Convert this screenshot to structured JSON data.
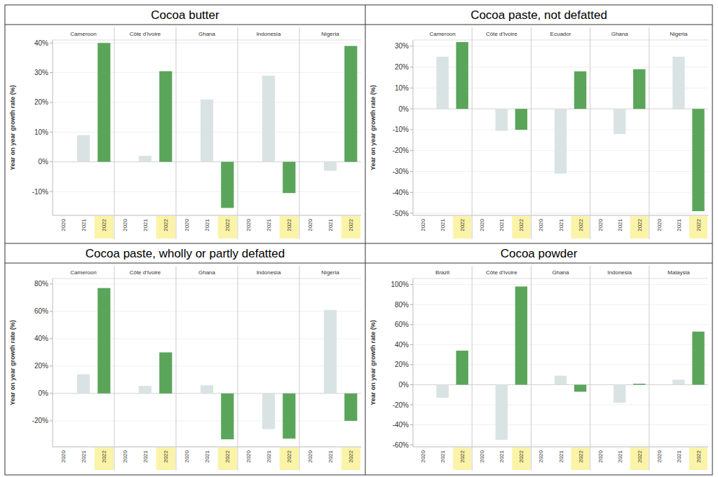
{
  "chart_data": [
    {
      "type": "bar",
      "title": "Cocoa butter",
      "y_label": "Year on year growth rate (%)",
      "categories": [
        "2020",
        "2021",
        "2022"
      ],
      "colors": [
        "#d9e3e3",
        "#d9e3e3",
        "#5aa55a"
      ],
      "ylim": [
        -18,
        41
      ],
      "yticks": [
        {
          "value": -10,
          "label": "-10%"
        },
        {
          "value": 0,
          "label": "0%"
        },
        {
          "value": 10,
          "label": "10%"
        },
        {
          "value": 20,
          "label": "20%"
        },
        {
          "value": 30,
          "label": "30%"
        },
        {
          "value": 40,
          "label": "40%"
        }
      ],
      "grid": true,
      "series": [
        {
          "name": "Cameroon",
          "values": [
            null,
            9,
            40
          ]
        },
        {
          "name": "Côte d'Ivoire",
          "values": [
            null,
            2,
            30.5
          ]
        },
        {
          "name": "Ghana",
          "values": [
            null,
            21,
            -15.5
          ]
        },
        {
          "name": "Indonesia",
          "values": [
            null,
            29,
            -10.5
          ]
        },
        {
          "name": "Nigeria",
          "values": [
            null,
            -3,
            39
          ]
        }
      ]
    },
    {
      "type": "bar",
      "title": "Cocoa paste, not defatted",
      "y_label": "Year on year growth rate (%)",
      "categories": [
        "2020",
        "2021",
        "2022"
      ],
      "colors": [
        "#d9e3e3",
        "#d9e3e3",
        "#5aa55a"
      ],
      "ylim": [
        -51,
        33
      ],
      "yticks": [
        {
          "value": -50,
          "label": "-50%"
        },
        {
          "value": -40,
          "label": "-40%"
        },
        {
          "value": -30,
          "label": "-30%"
        },
        {
          "value": -20,
          "label": "-20%"
        },
        {
          "value": -10,
          "label": "-10%"
        },
        {
          "value": 0,
          "label": "0%"
        },
        {
          "value": 10,
          "label": "10%"
        },
        {
          "value": 20,
          "label": "20%"
        },
        {
          "value": 30,
          "label": "30%"
        }
      ],
      "grid": true,
      "series": [
        {
          "name": "Cameroon",
          "values": [
            null,
            25,
            32
          ]
        },
        {
          "name": "Côte d'Ivoire",
          "values": [
            null,
            -10.5,
            -10
          ]
        },
        {
          "name": "Ecuador",
          "values": [
            null,
            -31,
            18
          ]
        },
        {
          "name": "Ghana",
          "values": [
            null,
            -12,
            19
          ]
        },
        {
          "name": "Nigeria",
          "values": [
            null,
            25,
            -49
          ]
        }
      ]
    },
    {
      "type": "bar",
      "title": "Cocoa paste, wholly or partly defatted",
      "y_label": "Year on year growth rate (%)",
      "categories": [
        "2020",
        "2021",
        "2022"
      ],
      "colors": [
        "#d9e3e3",
        "#d9e3e3",
        "#5aa55a"
      ],
      "ylim": [
        -39,
        84
      ],
      "yticks": [
        {
          "value": -20,
          "label": "-20%"
        },
        {
          "value": 0,
          "label": "0%"
        },
        {
          "value": 20,
          "label": "20%"
        },
        {
          "value": 40,
          "label": "40%"
        },
        {
          "value": 60,
          "label": "60%"
        },
        {
          "value": 80,
          "label": "80%"
        }
      ],
      "grid": true,
      "series": [
        {
          "name": "Cameroon",
          "values": [
            null,
            14,
            77
          ]
        },
        {
          "name": "Côte d'Ivoire",
          "values": [
            null,
            5.5,
            30
          ]
        },
        {
          "name": "Ghana",
          "values": [
            null,
            6,
            -33.5
          ]
        },
        {
          "name": "Indonesia",
          "values": [
            null,
            -26,
            -33
          ]
        },
        {
          "name": "Nigeria",
          "values": [
            null,
            61,
            -20
          ]
        }
      ]
    },
    {
      "type": "bar",
      "title": "Cocoa powder",
      "y_label": "Year on year growth rate (%)",
      "categories": [
        "2020",
        "2021",
        "2022"
      ],
      "colors": [
        "#d9e3e3",
        "#d9e3e3",
        "#5aa55a"
      ],
      "ylim": [
        -62,
        106
      ],
      "yticks": [
        {
          "value": -60,
          "label": "-60%"
        },
        {
          "value": -40,
          "label": "-40%"
        },
        {
          "value": -20,
          "label": "-20%"
        },
        {
          "value": 0,
          "label": "0%"
        },
        {
          "value": 20,
          "label": "20%"
        },
        {
          "value": 40,
          "label": "40%"
        },
        {
          "value": 60,
          "label": "60%"
        },
        {
          "value": 80,
          "label": "80%"
        },
        {
          "value": 100,
          "label": "100%"
        }
      ],
      "grid": true,
      "series": [
        {
          "name": "Brazil",
          "values": [
            null,
            -13,
            34
          ]
        },
        {
          "name": "Côte d'Ivoire",
          "values": [
            null,
            -55,
            98
          ]
        },
        {
          "name": "Ghana",
          "values": [
            null,
            9,
            -7
          ]
        },
        {
          "name": "Indonesia",
          "values": [
            null,
            -18,
            1
          ]
        },
        {
          "name": "Malaysia",
          "values": [
            null,
            5,
            53
          ]
        }
      ]
    }
  ]
}
